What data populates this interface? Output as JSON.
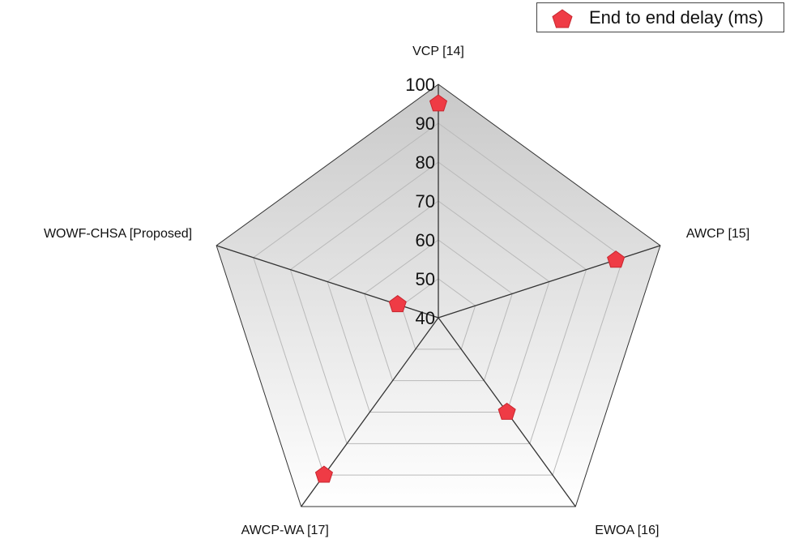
{
  "chart_data": {
    "type": "radar",
    "axes": [
      "VCP [14]",
      "AWCP [15]",
      "EWOA [16]",
      "AWCP-WA [17]",
      "WOWF-CHSA [Proposed]"
    ],
    "rlim": [
      40,
      100
    ],
    "ticks": [
      40,
      50,
      60,
      70,
      80,
      90,
      100
    ],
    "tick_labels": [
      "40",
      "50",
      "60",
      "70",
      "80",
      "90",
      "100"
    ],
    "grid": true,
    "legend_position": "top-right",
    "colors": {
      "marker": "#ef3b45",
      "marker_stroke": "#c7262f",
      "grid": "#b9b9b9",
      "spoke": "#333333",
      "fill_top": "#c9c9c9",
      "fill_bottom": "#ffffff"
    },
    "series": [
      {
        "name": "End to end delay (ms)",
        "marker": "pentagon-marker-icon",
        "values": [
          95,
          88,
          70,
          90,
          51
        ]
      }
    ]
  }
}
